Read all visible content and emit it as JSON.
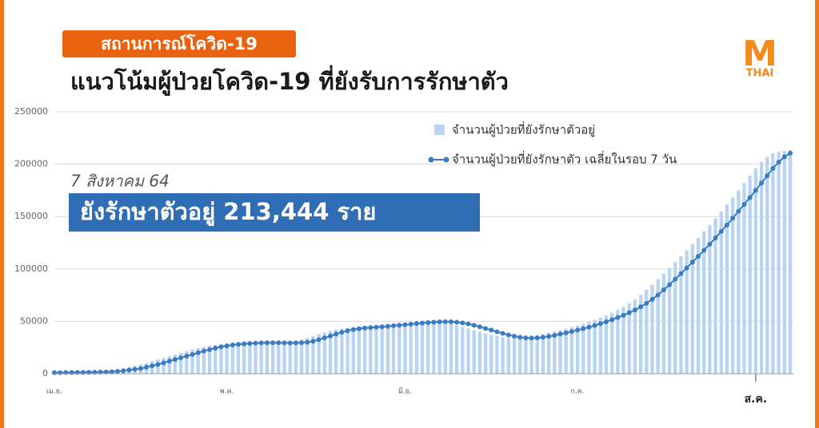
{
  "chart_data": {
    "type": "bar-line",
    "badge": "สถานการณ์โควิด-19",
    "title": "แนวโน้มผู้ป่วยโควิด-19 ที่ยังรับการรักษาตัว",
    "logo": "M",
    "logo_sub": "THAI",
    "annotation": "7 สิงหาคม 64",
    "highlight": "ยังรักษาตัวอยู่ 213,444 ราย",
    "ylim": [
      0,
      250000
    ],
    "yticks": [
      0,
      50000,
      100000,
      150000,
      200000,
      250000
    ],
    "grid": true,
    "categories": [
      "เม.ย.",
      null,
      null,
      null,
      null,
      null,
      null,
      null,
      null,
      null,
      null,
      null,
      null,
      null,
      null,
      null,
      null,
      null,
      null,
      null,
      null,
      null,
      null,
      null,
      null,
      null,
      null,
      null,
      null,
      null,
      "พ.ค.",
      null,
      null,
      null,
      null,
      null,
      null,
      null,
      null,
      null,
      null,
      null,
      null,
      null,
      null,
      null,
      null,
      null,
      null,
      null,
      null,
      null,
      null,
      null,
      null,
      null,
      null,
      null,
      null,
      null,
      null,
      "มิ.ย.",
      null,
      null,
      null,
      null,
      null,
      null,
      null,
      null,
      null,
      null,
      null,
      null,
      null,
      null,
      null,
      null,
      null,
      null,
      null,
      null,
      null,
      null,
      null,
      null,
      null,
      null,
      null,
      null,
      null,
      "ก.ค.",
      null,
      null,
      null,
      null,
      null,
      null,
      null,
      null,
      null,
      null,
      null,
      null,
      null,
      null,
      null,
      null,
      null,
      null,
      null,
      null,
      null,
      null,
      null,
      null,
      null,
      null,
      null,
      null,
      null,
      null,
      "ส.ค.",
      null,
      null,
      null,
      null,
      null,
      null
    ],
    "series": [
      {
        "name": "จำนวนผู้ป่วยที่ยังรักษาตัวอยู่",
        "type": "bar",
        "color": "#b9d4f1",
        "values": [
          1100,
          1200,
          1200,
          1300,
          1400,
          1500,
          1600,
          1800,
          2200,
          2800,
          3500,
          4200,
          5000,
          6200,
          7500,
          8800,
          10300,
          12000,
          13600,
          15200,
          16800,
          18400,
          20000,
          21600,
          23000,
          24400,
          25600,
          26600,
          27400,
          28000,
          28500,
          28900,
          29200,
          29400,
          29500,
          29500,
          29500,
          29400,
          29300,
          29400,
          29600,
          30000,
          31000,
          32500,
          34200,
          36000,
          37800,
          39500,
          41000,
          42200,
          43000,
          43600,
          44000,
          44400,
          44800,
          45300,
          45800,
          46300,
          46800,
          47300,
          47800,
          48300,
          48800,
          49200,
          49500,
          49600,
          49500,
          49200,
          48500,
          47500,
          46200,
          44800,
          43200,
          41600,
          40000,
          38500,
          37000,
          35800,
          34800,
          34200,
          34000,
          34200,
          34800,
          35600,
          36600,
          37800,
          39000,
          40300,
          41600,
          43000,
          44400,
          46000,
          47700,
          49500,
          51500,
          53600,
          55800,
          58200,
          60800,
          63800,
          67200,
          71000,
          75200,
          80000,
          85000,
          90200,
          95600,
          101000,
          106500,
          112000,
          117800,
          123600,
          129600,
          135800,
          142000,
          148400,
          155000,
          161600,
          168200,
          175000,
          182000,
          189000,
          196000,
          202000,
          207000,
          210500,
          211800,
          212600,
          213444
        ]
      },
      {
        "name": "จำนวนผู้ป่วยที่ยังรักษาตัว เฉลี่ยในรอบ 7 วัน",
        "type": "line",
        "color": "#3a7cc4",
        "values": [
          1000,
          1000,
          1100,
          1100,
          1200,
          1200,
          1300,
          1400,
          1500,
          1600,
          1800,
          2200,
          2800,
          3500,
          4200,
          5000,
          6200,
          7500,
          8800,
          10300,
          12000,
          13600,
          15200,
          16800,
          18400,
          20000,
          21600,
          23000,
          24400,
          25600,
          26600,
          27400,
          28000,
          28500,
          28900,
          29200,
          29400,
          29500,
          29500,
          29500,
          29400,
          29300,
          29400,
          29600,
          30000,
          31000,
          32500,
          34200,
          36000,
          37800,
          39500,
          41000,
          42200,
          43000,
          43600,
          44000,
          44400,
          44800,
          45300,
          45800,
          46300,
          46800,
          47300,
          47800,
          48300,
          48800,
          49200,
          49500,
          49600,
          49500,
          49200,
          48500,
          47500,
          46200,
          44800,
          43200,
          41600,
          40000,
          38500,
          37000,
          35800,
          34800,
          34200,
          34000,
          34200,
          34800,
          35600,
          36600,
          37800,
          39000,
          40300,
          41600,
          43000,
          44400,
          46000,
          47700,
          49500,
          51500,
          53600,
          55800,
          58200,
          60800,
          63800,
          67200,
          71000,
          75200,
          80000,
          85000,
          90200,
          95600,
          101000,
          106500,
          112000,
          117800,
          123600,
          129600,
          135800,
          142000,
          148400,
          155000,
          161600,
          168200,
          175000,
          182000,
          189000,
          196000,
          202000,
          207000,
          210500
        ]
      }
    ]
  }
}
